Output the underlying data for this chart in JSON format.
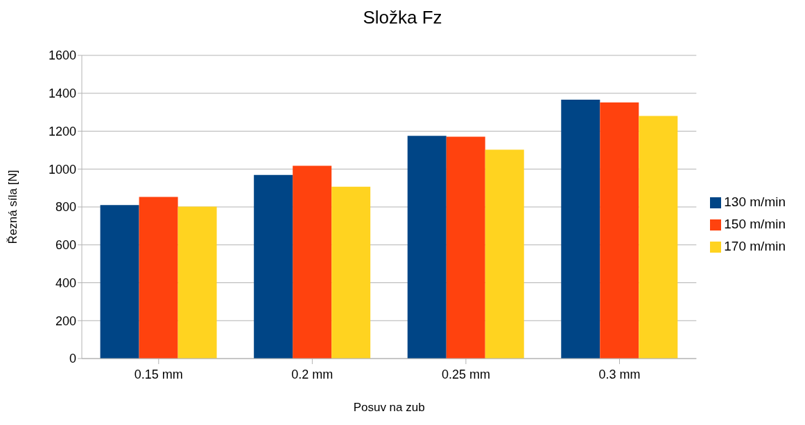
{
  "chart_data": {
    "type": "bar",
    "title": "Složka Fz",
    "xlabel": "Posuv na zub",
    "ylabel": "Řezná síla [N]",
    "categories": [
      "0.15 mm",
      "0.2 mm",
      "0.25 mm",
      "0.3 mm"
    ],
    "series": [
      {
        "name": "130 m/min",
        "color": "#004586",
        "values": [
          810,
          969,
          1175,
          1366
        ]
      },
      {
        "name": "150 m/min",
        "color": "#ff420e",
        "values": [
          853,
          1017,
          1171,
          1352
        ]
      },
      {
        "name": "170 m/min",
        "color": "#ffd320",
        "values": [
          802,
          907,
          1102,
          1280
        ]
      }
    ],
    "ylim": [
      0,
      1600
    ],
    "yticks": [
      0,
      200,
      400,
      600,
      800,
      1000,
      1200,
      1400,
      1600
    ],
    "grid": "y",
    "legend": "right"
  }
}
